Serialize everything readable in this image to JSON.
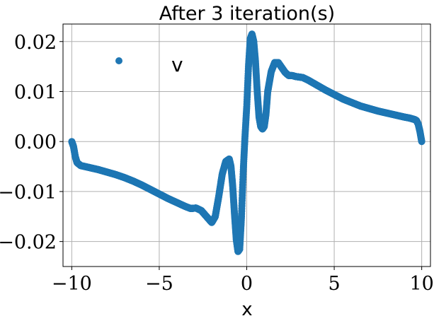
{
  "chart_data": {
    "type": "scatter",
    "title": "After 3 iteration(s)",
    "xlabel": "x",
    "ylabel": "",
    "xlim": [
      -10.5,
      10.5
    ],
    "ylim": [
      -0.025,
      0.0235
    ],
    "xticks": [
      -10,
      -5,
      0,
      5,
      10
    ],
    "xtick_labels": [
      "−10",
      "−5",
      "0",
      "5",
      "10"
    ],
    "yticks": [
      -0.02,
      -0.01,
      0.0,
      0.01,
      0.02
    ],
    "ytick_labels": [
      "−0.02",
      "−0.01",
      "0.00",
      "0.01",
      "0.02"
    ],
    "grid": true,
    "legend": {
      "placement": "top-left",
      "entries": [
        "v"
      ]
    },
    "series": [
      {
        "name": "v",
        "color": "#1f77b4",
        "x": [
          -10.0,
          -9.9,
          -9.8,
          -9.7,
          -9.5,
          -9.0,
          -8.5,
          -8.0,
          -7.5,
          -7.0,
          -6.5,
          -6.0,
          -5.5,
          -5.0,
          -4.5,
          -4.0,
          -3.5,
          -3.2,
          -2.9,
          -2.6,
          -2.3,
          -2.0,
          -1.8,
          -1.6,
          -1.4,
          -1.2,
          -1.0,
          -0.9,
          -0.8,
          -0.7,
          -0.6,
          -0.5,
          -0.4,
          -0.3,
          -0.2,
          -0.1,
          0.0,
          0.1,
          0.2,
          0.3,
          0.4,
          0.5,
          0.6,
          0.7,
          0.8,
          0.9,
          1.0,
          1.1,
          1.2,
          1.4,
          1.6,
          1.8,
          2.0,
          2.2,
          2.4,
          2.6,
          2.8,
          3.0,
          3.2,
          3.5,
          3.8,
          4.0,
          4.5,
          5.0,
          5.5,
          6.0,
          6.5,
          7.0,
          7.5,
          8.0,
          8.5,
          9.0,
          9.3,
          9.5,
          9.6,
          9.7,
          9.8,
          9.9,
          10.0
        ],
        "y": [
          0.0,
          -0.001,
          -0.003,
          -0.0042,
          -0.0048,
          -0.0052,
          -0.0056,
          -0.0061,
          -0.0066,
          -0.0072,
          -0.0079,
          -0.0087,
          -0.0096,
          -0.0105,
          -0.0114,
          -0.0122,
          -0.013,
          -0.0134,
          -0.0133,
          -0.0138,
          -0.015,
          -0.0162,
          -0.015,
          -0.011,
          -0.0065,
          -0.004,
          -0.0035,
          -0.005,
          -0.009,
          -0.0145,
          -0.0195,
          -0.022,
          -0.0215,
          -0.015,
          -0.006,
          0.001,
          0.007,
          0.015,
          0.0205,
          0.0215,
          0.02,
          0.016,
          0.01,
          0.005,
          0.003,
          0.0025,
          0.003,
          0.0055,
          0.01,
          0.014,
          0.0158,
          0.0158,
          0.0148,
          0.0138,
          0.0132,
          0.0132,
          0.013,
          0.0129,
          0.0128,
          0.0123,
          0.0117,
          0.0113,
          0.0103,
          0.0094,
          0.0085,
          0.0078,
          0.0071,
          0.0066,
          0.0061,
          0.0057,
          0.0053,
          0.0049,
          0.0047,
          0.0045,
          0.0044,
          0.0042,
          0.0035,
          0.002,
          0.0
        ]
      }
    ]
  }
}
